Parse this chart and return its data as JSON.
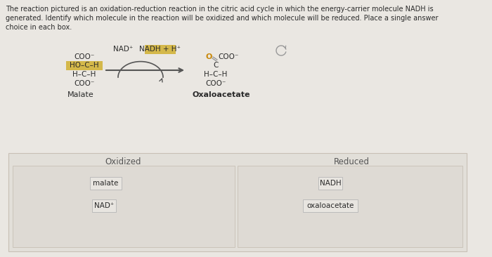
{
  "title_line1": "The reaction pictured is an oxidation-reduction reaction in the citric acid cycle in which the energy-carrier molecule NADH is",
  "title_line2": "generated. Identify which molecule in the reaction will be oxidized and which molecule will be reduced. Place a single answer",
  "title_line3": "choice in each box.",
  "bg_color": "#eae7e2",
  "box_bg": "#e2dfd9",
  "inner_box_bg": "#dedad4",
  "chip_bg": "#e8e5e0",
  "border_color": "#c8c0b5",
  "text_color": "#2a2a2a",
  "label_color": "#555555",
  "nad_color": "#b89020",
  "highlight_bg": "#d4b84a",
  "arrow_color": "#555555",
  "oxidized_label": "Oxidized",
  "reduced_label": "Reduced",
  "figsize": [
    7.0,
    3.66
  ],
  "dpi": 100
}
